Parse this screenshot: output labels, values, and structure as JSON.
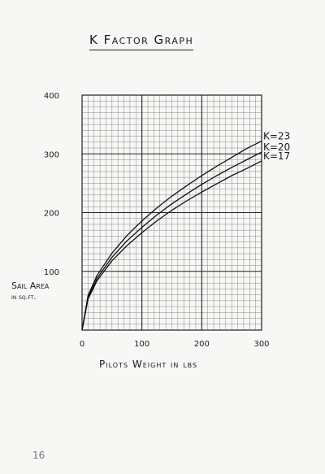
{
  "page": {
    "title": "K Factor Graph",
    "page_number": "16"
  },
  "chart_data": {
    "type": "line",
    "title": "K Factor Graph",
    "xlabel": "Pilots Weight in lbs",
    "ylabel": "Sail Area in sq.ft.",
    "ylabel_line1": "Sail Area",
    "ylabel_line2": "in sq.ft.",
    "xlim": [
      0,
      300
    ],
    "ylim": [
      0,
      400
    ],
    "x_ticks": [
      0,
      100,
      200,
      300
    ],
    "y_ticks": [
      100,
      200,
      300,
      400
    ],
    "x_tick_labels": [
      "0",
      "100",
      "200",
      "300"
    ],
    "y_tick_labels": [
      "100",
      "200",
      "300",
      "400"
    ],
    "grid": true,
    "x": [
      0,
      10,
      25,
      50,
      75,
      100,
      125,
      150,
      175,
      200,
      225,
      250,
      275,
      300
    ],
    "series": [
      {
        "name": "K=23",
        "values": [
          0,
          59,
          93,
          131,
          161,
          186,
          208,
          228,
          246,
          263,
          279,
          294,
          309,
          322
        ]
      },
      {
        "name": "K=20",
        "values": [
          0,
          56,
          88,
          124,
          152,
          175,
          196,
          215,
          232,
          248,
          263,
          277,
          290,
          303
        ]
      },
      {
        "name": "K=17",
        "values": [
          0,
          53,
          84,
          118,
          144,
          166,
          186,
          204,
          220,
          235,
          249,
          263,
          275,
          288
        ]
      }
    ]
  }
}
